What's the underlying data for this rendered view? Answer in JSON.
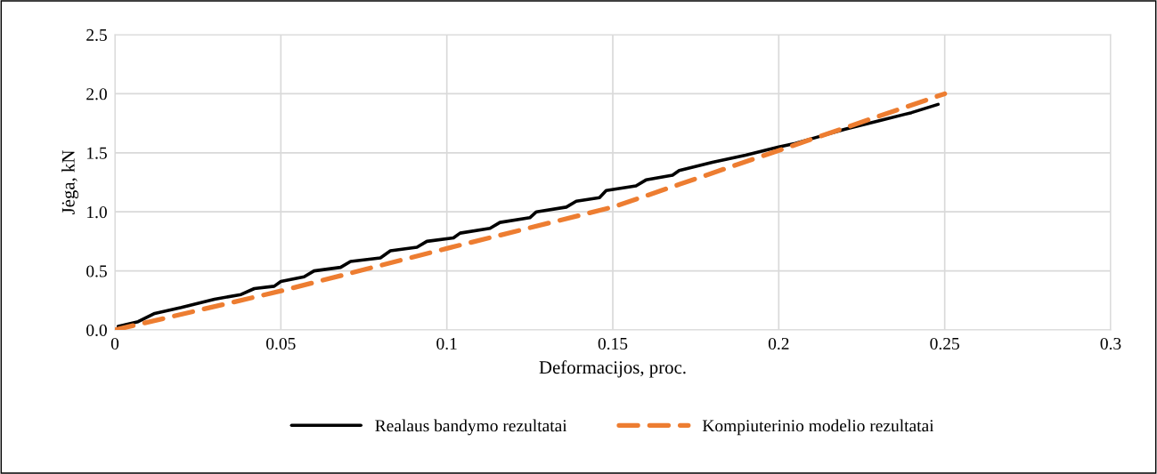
{
  "chart_data": {
    "type": "line",
    "xlabel": "Deformacijos, proc.",
    "ylabel": "Jėga, kN",
    "xlim": [
      0,
      0.3
    ],
    "xticks": [
      0,
      0.05,
      0.1,
      0.15,
      0.2,
      0.25,
      0.3
    ],
    "ylim": [
      0,
      2.5
    ],
    "yticks": [
      {
        "value": 0,
        "label": "0.0"
      },
      {
        "value": 0.5,
        "label": "0.5"
      },
      {
        "value": 1,
        "label": "1.0"
      },
      {
        "value": 1.5,
        "label": "1.5"
      },
      {
        "value": 2,
        "label": "2.0"
      },
      {
        "value": 2.5,
        "label": "2.5"
      }
    ],
    "grid": true,
    "legend": "bottom",
    "series": [
      {
        "name": "Realaus bandymo rezultatai",
        "color": "#000000",
        "line_style": "solid",
        "x": [
          0.001,
          0.007,
          0.012,
          0.02,
          0.03,
          0.038,
          0.042,
          0.048,
          0.05,
          0.057,
          0.06,
          0.068,
          0.071,
          0.08,
          0.083,
          0.091,
          0.094,
          0.102,
          0.104,
          0.113,
          0.116,
          0.125,
          0.127,
          0.136,
          0.139,
          0.146,
          0.148,
          0.157,
          0.16,
          0.168,
          0.17,
          0.18,
          0.19,
          0.2,
          0.205,
          0.21,
          0.22,
          0.23,
          0.24,
          0.248
        ],
        "values": [
          0.03,
          0.07,
          0.14,
          0.19,
          0.26,
          0.3,
          0.35,
          0.37,
          0.41,
          0.45,
          0.5,
          0.53,
          0.58,
          0.61,
          0.67,
          0.7,
          0.75,
          0.78,
          0.82,
          0.86,
          0.91,
          0.95,
          1.0,
          1.04,
          1.09,
          1.12,
          1.18,
          1.22,
          1.27,
          1.31,
          1.35,
          1.42,
          1.48,
          1.55,
          1.58,
          1.62,
          1.7,
          1.77,
          1.84,
          1.91
        ]
      },
      {
        "name": "Kompiuterinio modelio rezultatai",
        "color": "#ed7d31",
        "line_style": "dashed",
        "x": [
          0,
          0.05,
          0.1,
          0.15,
          0.2,
          0.25
        ],
        "values": [
          0,
          0.33,
          0.69,
          1.04,
          1.52,
          2.0
        ]
      }
    ]
  }
}
